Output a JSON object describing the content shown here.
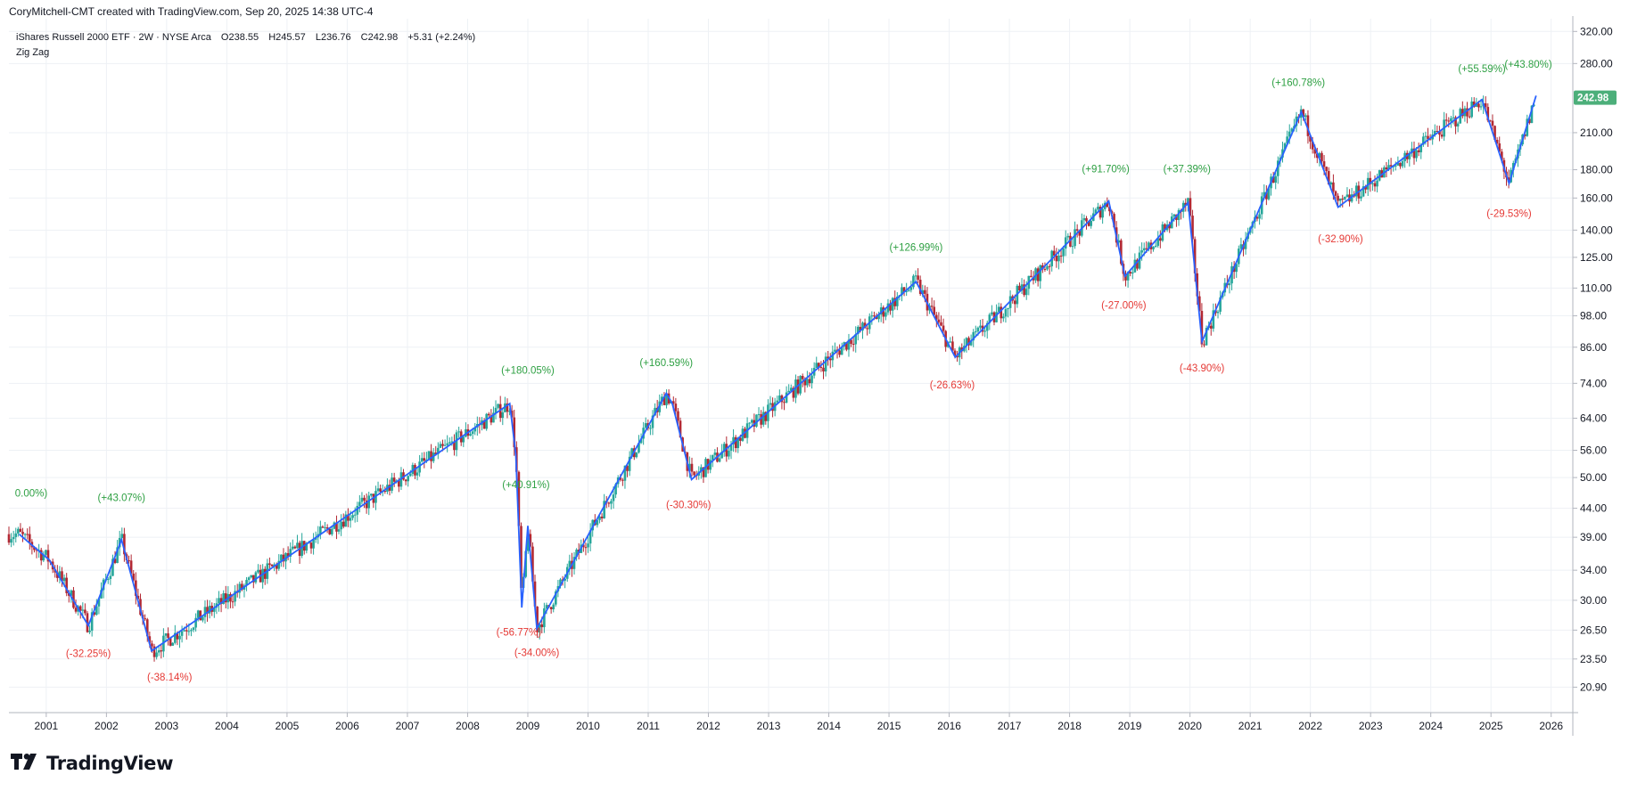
{
  "header": {
    "author_line": "CoryMitchell-CMT created with TradingView.com, Sep 20, 2025 14:38 UTC-4"
  },
  "colors": {
    "zigzag": "#2962ff",
    "up": "#26a69a",
    "down": "#b22833",
    "label_up": "#2ea043",
    "label_down": "#e53935",
    "grid": "#eef1f5",
    "axis": "#787b86",
    "last_price_bg": "#4caf7a"
  },
  "logo": {
    "text": "TradingView",
    "icon": "tradingview-logo-icon"
  },
  "chart_data": {
    "type": "candlestick",
    "symbol_line": "iShares Russell 2000 ETF · 2W · NYSE Arca",
    "ohlc_labels": {
      "open": "O238.55",
      "high": "H245.57",
      "low": "L236.76",
      "close": "C242.98",
      "change": "+5.31 (+2.24%)"
    },
    "indicator": "Zig Zag",
    "y_scale": "log",
    "ylim": [
      18.8,
      330
    ],
    "xlim": [
      2000.38,
      2026.33
    ],
    "y_ticks": [
      "320.00",
      "280.00",
      "210.00",
      "180.00",
      "160.00",
      "140.00",
      "125.00",
      "110.00",
      "98.00",
      "86.00",
      "74.00",
      "64.00",
      "56.00",
      "50.00",
      "44.00",
      "39.00",
      "34.00",
      "30.00",
      "26.50",
      "23.50",
      "20.90"
    ],
    "x_ticks": [
      "2001",
      "2002",
      "2003",
      "2004",
      "2005",
      "2006",
      "2007",
      "2008",
      "2009",
      "2010",
      "2011",
      "2012",
      "2013",
      "2014",
      "2015",
      "2016",
      "2017",
      "2018",
      "2019",
      "2020",
      "2021",
      "2022",
      "2023",
      "2024",
      "2025",
      "2026"
    ],
    "last_price": {
      "value": 242.98,
      "label": "242.98"
    },
    "zigzag": [
      {
        "t": 2000.55,
        "v": 39.5
      },
      {
        "t": 2001.05,
        "v": 35.5
      },
      {
        "t": 2001.7,
        "v": 27.0
      },
      {
        "t": 2002.25,
        "v": 38.6
      },
      {
        "t": 2002.75,
        "v": 24.3
      },
      {
        "t": 2008.7,
        "v": 68.0
      },
      {
        "t": 2008.8,
        "v": 55.0
      },
      {
        "t": 2008.9,
        "v": 29.1
      },
      {
        "t": 2009.0,
        "v": 40.9
      },
      {
        "t": 2009.15,
        "v": 26.7
      },
      {
        "t": 2011.3,
        "v": 71.0
      },
      {
        "t": 2011.4,
        "v": 68.0
      },
      {
        "t": 2011.72,
        "v": 49.6
      },
      {
        "t": 2015.45,
        "v": 113.0
      },
      {
        "t": 2016.1,
        "v": 82.5
      },
      {
        "t": 2018.65,
        "v": 158.0
      },
      {
        "t": 2018.92,
        "v": 115.5
      },
      {
        "t": 2019.97,
        "v": 157.0
      },
      {
        "t": 2020.2,
        "v": 88.0
      },
      {
        "t": 2021.85,
        "v": 229.0
      },
      {
        "t": 2022.46,
        "v": 154.0
      },
      {
        "t": 2024.85,
        "v": 241.0
      },
      {
        "t": 2025.3,
        "v": 170.0
      },
      {
        "t": 2025.75,
        "v": 245.0
      }
    ],
    "annotations": [
      {
        "text": "0.00%)",
        "t": 2000.75,
        "v": 46.2,
        "dir": "up"
      },
      {
        "text": "(+43.07%)",
        "t": 2002.25,
        "v": 45.3,
        "dir": "up"
      },
      {
        "text": "(-32.25%)",
        "t": 2001.7,
        "v": 23.7,
        "dir": "down"
      },
      {
        "text": "(-38.14%)",
        "t": 2003.05,
        "v": 21.5,
        "dir": "down"
      },
      {
        "text": "(+180.05%)",
        "t": 2009.0,
        "v": 77.0,
        "dir": "up"
      },
      {
        "text": "(+40.91%)",
        "t": 2008.97,
        "v": 47.8,
        "dir": "up"
      },
      {
        "text": "(-56.77%)",
        "t": 2008.85,
        "v": 25.9,
        "dir": "down"
      },
      {
        "text": "(-34.00%)",
        "t": 2009.15,
        "v": 23.8,
        "dir": "down"
      },
      {
        "text": "(+160.59%)",
        "t": 2011.3,
        "v": 79.5,
        "dir": "up"
      },
      {
        "text": "(-30.30%)",
        "t": 2011.67,
        "v": 44.0,
        "dir": "down"
      },
      {
        "text": "(+126.99%)",
        "t": 2015.45,
        "v": 128.5,
        "dir": "up"
      },
      {
        "text": "(-26.63%)",
        "t": 2016.05,
        "v": 72.4,
        "dir": "down"
      },
      {
        "text": "(+91.70%)",
        "t": 2018.6,
        "v": 178.0,
        "dir": "up"
      },
      {
        "text": "(-27.00%)",
        "t": 2018.9,
        "v": 101.0,
        "dir": "down"
      },
      {
        "text": "(+37.39%)",
        "t": 2019.95,
        "v": 178.0,
        "dir": "up"
      },
      {
        "text": "(-43.90%)",
        "t": 2020.2,
        "v": 77.8,
        "dir": "down"
      },
      {
        "text": "(+160.78%)",
        "t": 2021.8,
        "v": 255.0,
        "dir": "up"
      },
      {
        "text": "(-32.90%)",
        "t": 2022.5,
        "v": 133.0,
        "dir": "down"
      },
      {
        "text": "(+55.59%)",
        "t": 2024.85,
        "v": 270.0,
        "dir": "up"
      },
      {
        "text": "(+43.80%)",
        "t": 2025.62,
        "v": 275.0,
        "dir": "up"
      },
      {
        "text": "(-29.53%)",
        "t": 2025.3,
        "v": 148.0,
        "dir": "down"
      }
    ]
  }
}
